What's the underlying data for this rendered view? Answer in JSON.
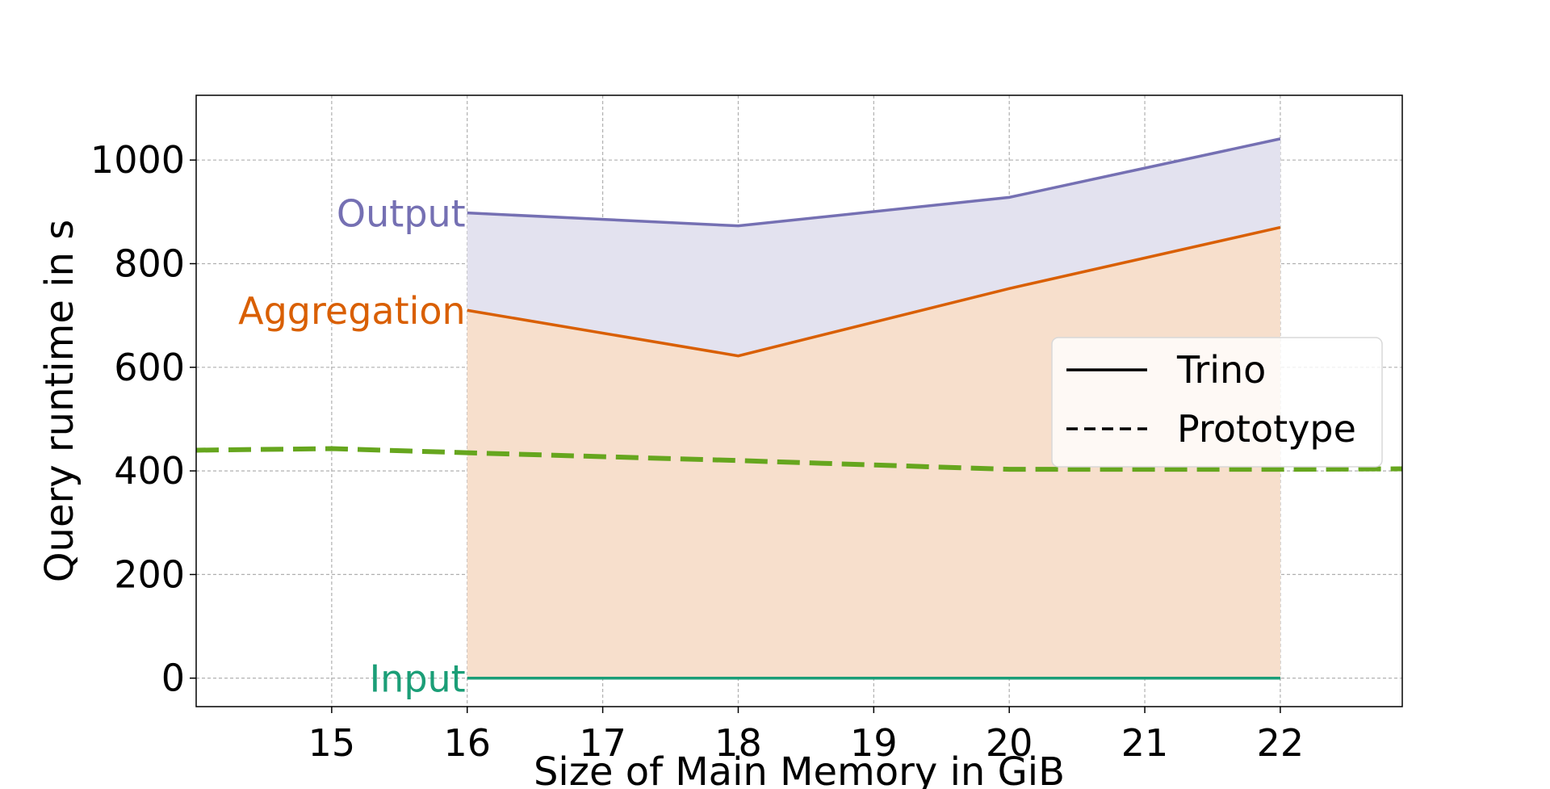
{
  "chart_data": {
    "type": "area",
    "title": "",
    "xlabel": "Size of Main Memory in GiB",
    "ylabel": "Query runtime in s",
    "xlim": [
      14.0,
      22.9
    ],
    "ylim": [
      -55,
      1125
    ],
    "xticks": [
      15,
      16,
      17,
      18,
      19,
      20,
      21,
      22
    ],
    "yticks": [
      0,
      200,
      400,
      600,
      800,
      1000
    ],
    "grid": true,
    "legend": {
      "placement": "center-right",
      "entries": [
        {
          "label": "Trino",
          "style": "solid"
        },
        {
          "label": "Prototype",
          "style": "dashed"
        }
      ]
    },
    "stacked_series": [
      {
        "name": "Input",
        "color": "#1b9e77",
        "fill": "none",
        "x": [
          16,
          18,
          20,
          22
        ],
        "values": [
          0,
          0,
          0,
          0
        ]
      },
      {
        "name": "Aggregation",
        "color": "#d95f02",
        "fill": "#f7dfcc",
        "x": [
          16,
          18,
          20,
          22
        ],
        "values": [
          710,
          622,
          752,
          870
        ]
      },
      {
        "name": "Output",
        "color": "#7570b3",
        "fill": "#e3e2ef",
        "x": [
          16,
          18,
          20,
          22
        ],
        "values": [
          898,
          873,
          928,
          1041
        ]
      }
    ],
    "prototype_series": {
      "color": "#66a61e",
      "style": "dashed",
      "x": [
        14.0,
        15,
        16,
        18,
        20,
        22,
        22.9
      ],
      "values": [
        440,
        443,
        435,
        420,
        403,
        403,
        404
      ]
    }
  }
}
